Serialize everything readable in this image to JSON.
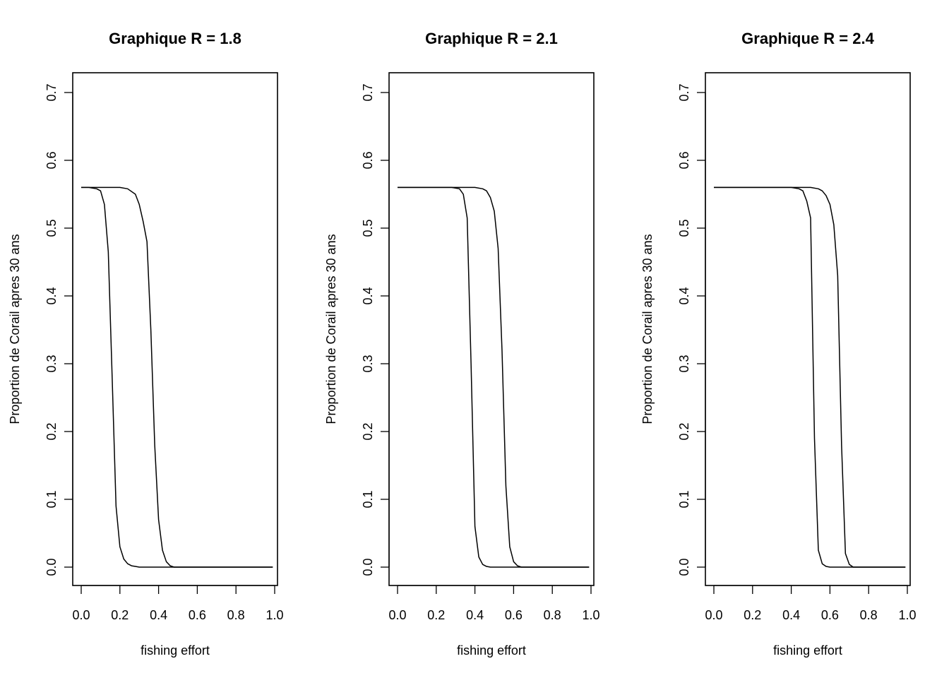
{
  "chart_data": [
    {
      "type": "line",
      "title": "Graphique R = 1.8",
      "xlabel": "fishing effort",
      "ylabel": "Proportion de Corail apres 30 ans",
      "xlim": [
        0,
        1
      ],
      "ylim": [
        0,
        0.7
      ],
      "xticks": [
        0.0,
        0.2,
        0.4,
        0.6,
        0.8,
        1.0
      ],
      "xtick_labels": [
        "0.0",
        "0.2",
        "0.4",
        "0.6",
        "0.8",
        "1.0"
      ],
      "yticks": [
        0.0,
        0.1,
        0.2,
        0.3,
        0.4,
        0.5,
        0.6,
        0.7
      ],
      "ytick_labels": [
        "0.0",
        "0.1",
        "0.2",
        "0.3",
        "0.4",
        "0.5",
        "0.6",
        "0.7"
      ],
      "grid": false,
      "series": [
        {
          "x": [
            0.0,
            0.04,
            0.08,
            0.1,
            0.12,
            0.14,
            0.16,
            0.18,
            0.2,
            0.22,
            0.24,
            0.26,
            0.28,
            0.3,
            0.4,
            0.5,
            0.6,
            0.7,
            0.8,
            0.9,
            0.99
          ],
          "y": [
            0.56,
            0.56,
            0.558,
            0.555,
            0.535,
            0.465,
            0.28,
            0.09,
            0.03,
            0.012,
            0.005,
            0.002,
            0.001,
            0.0,
            0.0,
            0.0,
            0.0,
            0.0,
            0.0,
            0.0,
            0.0
          ]
        },
        {
          "x": [
            0.0,
            0.1,
            0.2,
            0.24,
            0.28,
            0.3,
            0.32,
            0.34,
            0.36,
            0.38,
            0.4,
            0.42,
            0.44,
            0.46,
            0.48,
            0.5,
            0.6,
            0.7,
            0.8,
            0.9,
            0.99
          ],
          "y": [
            0.56,
            0.56,
            0.56,
            0.558,
            0.55,
            0.535,
            0.51,
            0.48,
            0.35,
            0.18,
            0.07,
            0.025,
            0.008,
            0.002,
            0.0,
            0.0,
            0.0,
            0.0,
            0.0,
            0.0,
            0.0
          ]
        }
      ]
    },
    {
      "type": "line",
      "title": "Graphique R = 2.1",
      "xlabel": "fishing effort",
      "ylabel": "Proportion de Corail apres 30 ans",
      "xlim": [
        0,
        1
      ],
      "ylim": [
        0,
        0.7
      ],
      "xticks": [
        0.0,
        0.2,
        0.4,
        0.6,
        0.8,
        1.0
      ],
      "xtick_labels": [
        "0.0",
        "0.2",
        "0.4",
        "0.6",
        "0.8",
        "1.0"
      ],
      "yticks": [
        0.0,
        0.1,
        0.2,
        0.3,
        0.4,
        0.5,
        0.6,
        0.7
      ],
      "ytick_labels": [
        "0.0",
        "0.1",
        "0.2",
        "0.3",
        "0.4",
        "0.5",
        "0.6",
        "0.7"
      ],
      "grid": false,
      "series": [
        {
          "x": [
            0.0,
            0.1,
            0.2,
            0.28,
            0.32,
            0.34,
            0.36,
            0.38,
            0.4,
            0.42,
            0.44,
            0.46,
            0.48,
            0.5,
            0.6,
            0.7,
            0.8,
            0.9,
            0.99
          ],
          "y": [
            0.56,
            0.56,
            0.56,
            0.56,
            0.558,
            0.55,
            0.515,
            0.3,
            0.06,
            0.015,
            0.004,
            0.001,
            0.0,
            0.0,
            0.0,
            0.0,
            0.0,
            0.0,
            0.0
          ]
        },
        {
          "x": [
            0.0,
            0.1,
            0.2,
            0.3,
            0.4,
            0.44,
            0.46,
            0.48,
            0.5,
            0.52,
            0.54,
            0.56,
            0.58,
            0.6,
            0.62,
            0.64,
            0.7,
            0.8,
            0.9,
            0.99
          ],
          "y": [
            0.56,
            0.56,
            0.56,
            0.56,
            0.56,
            0.558,
            0.555,
            0.545,
            0.525,
            0.47,
            0.32,
            0.12,
            0.03,
            0.008,
            0.002,
            0.0,
            0.0,
            0.0,
            0.0,
            0.0
          ]
        }
      ]
    },
    {
      "type": "line",
      "title": "Graphique R = 2.4",
      "xlabel": "fishing effort",
      "ylabel": "Proportion de Corail apres 30 ans",
      "xlim": [
        0,
        1
      ],
      "ylim": [
        0,
        0.7
      ],
      "xticks": [
        0.0,
        0.2,
        0.4,
        0.6,
        0.8,
        1.0
      ],
      "xtick_labels": [
        "0.0",
        "0.2",
        "0.4",
        "0.6",
        "0.8",
        "1.0"
      ],
      "yticks": [
        0.0,
        0.1,
        0.2,
        0.3,
        0.4,
        0.5,
        0.6,
        0.7
      ],
      "ytick_labels": [
        "0.0",
        "0.1",
        "0.2",
        "0.3",
        "0.4",
        "0.5",
        "0.6",
        "0.7"
      ],
      "grid": false,
      "series": [
        {
          "x": [
            0.0,
            0.1,
            0.2,
            0.3,
            0.4,
            0.44,
            0.46,
            0.48,
            0.5,
            0.52,
            0.54,
            0.56,
            0.58,
            0.6,
            0.7,
            0.8,
            0.9,
            0.99
          ],
          "y": [
            0.56,
            0.56,
            0.56,
            0.56,
            0.56,
            0.558,
            0.555,
            0.54,
            0.515,
            0.19,
            0.025,
            0.005,
            0.001,
            0.0,
            0.0,
            0.0,
            0.0,
            0.0
          ]
        },
        {
          "x": [
            0.0,
            0.1,
            0.2,
            0.3,
            0.4,
            0.5,
            0.54,
            0.56,
            0.58,
            0.6,
            0.62,
            0.64,
            0.66,
            0.68,
            0.7,
            0.72,
            0.8,
            0.9,
            0.99
          ],
          "y": [
            0.56,
            0.56,
            0.56,
            0.56,
            0.56,
            0.56,
            0.558,
            0.555,
            0.548,
            0.535,
            0.505,
            0.43,
            0.18,
            0.02,
            0.004,
            0.0,
            0.0,
            0.0,
            0.0
          ]
        }
      ]
    }
  ]
}
